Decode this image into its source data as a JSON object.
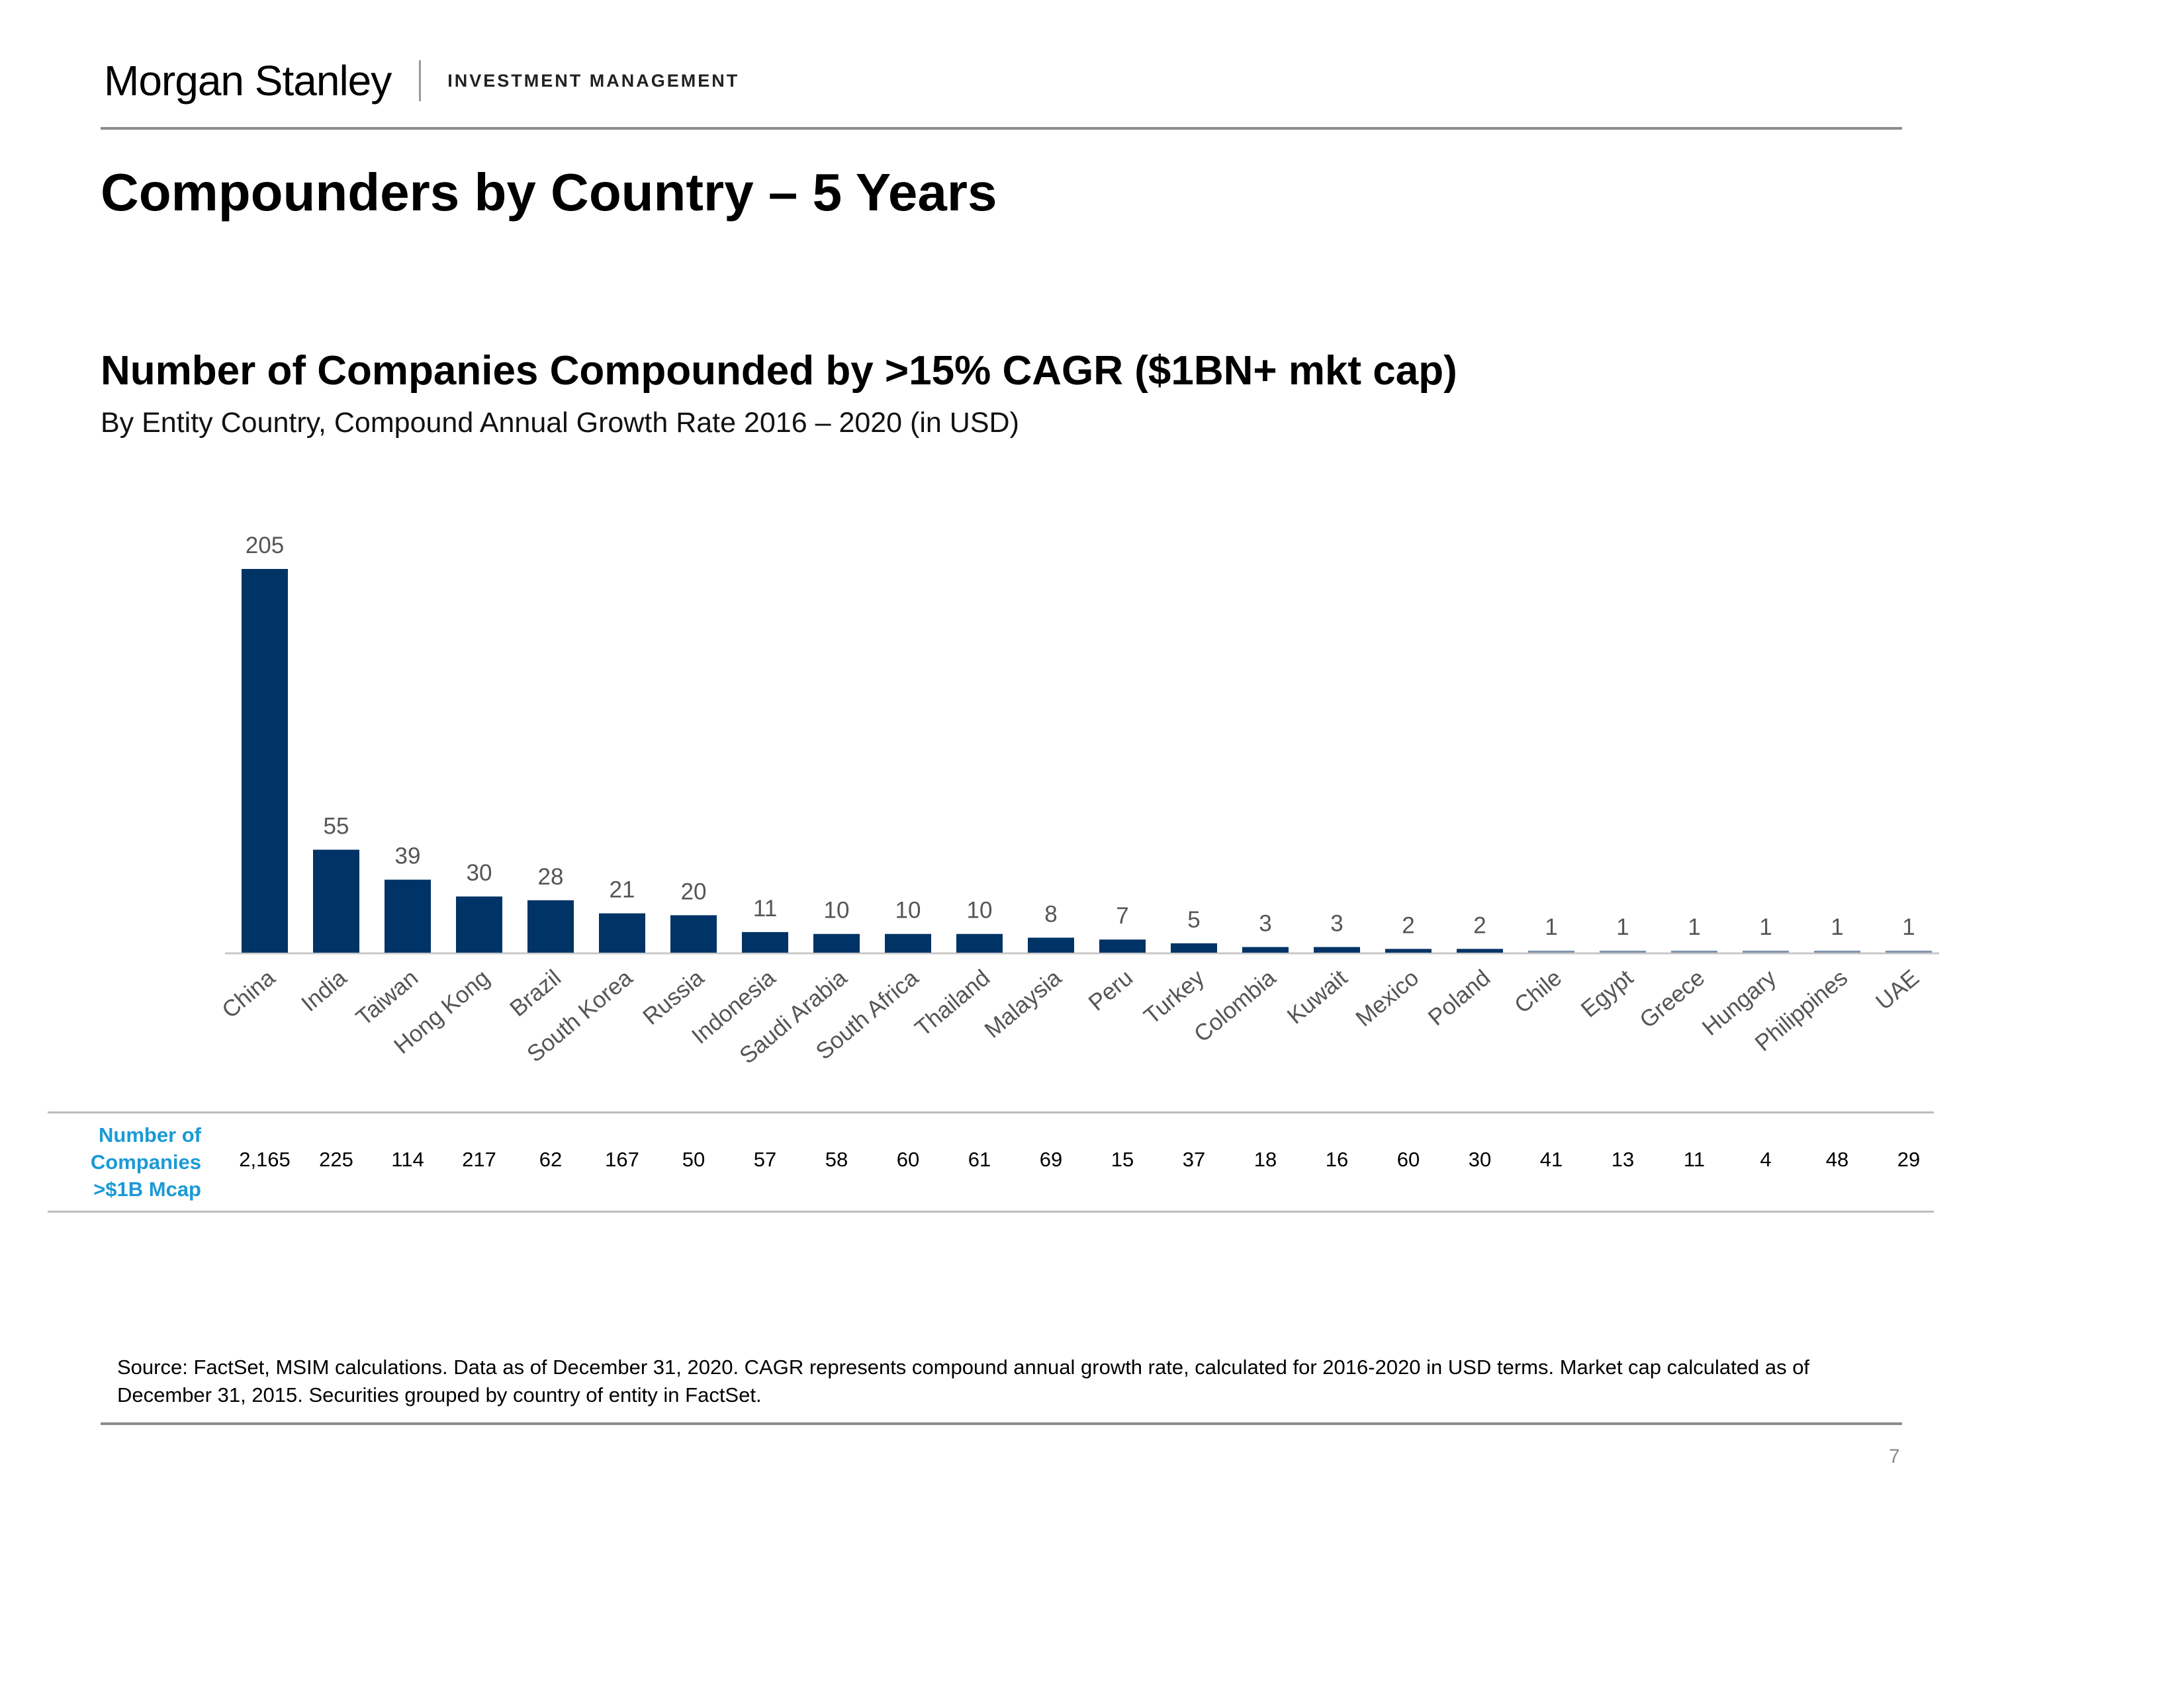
{
  "header": {
    "brand_name": "Morgan Stanley",
    "brand_division": "INVESTMENT MANAGEMENT"
  },
  "page_title": "Compounders by Country – 5 Years",
  "chart_data": {
    "type": "bar",
    "title": "Number of Companies Compounded by >15% CAGR ($1BN+ mkt cap)",
    "subtitle": "By Entity Country, Compound Annual Growth Rate 2016 – 2020 (in USD)",
    "categories": [
      "China",
      "India",
      "Taiwan",
      "Hong Kong",
      "Brazil",
      "South Korea",
      "Russia",
      "Indonesia",
      "Saudi Arabia",
      "South Africa",
      "Thailand",
      "Malaysia",
      "Peru",
      "Turkey",
      "Colombia",
      "Kuwait",
      "Mexico",
      "Poland",
      "Chile",
      "Egypt",
      "Greece",
      "Hungary",
      "Philippines",
      "UAE"
    ],
    "values": [
      205,
      55,
      39,
      30,
      28,
      21,
      20,
      11,
      10,
      10,
      10,
      8,
      7,
      5,
      3,
      3,
      2,
      2,
      1,
      1,
      1,
      1,
      1,
      1
    ],
    "ylim": [
      0,
      205
    ],
    "grid": false,
    "bar_color": "#003366",
    "low_bar_color": "#7f93ad"
  },
  "table": {
    "row_label_lines": [
      "Number of",
      "Companies",
      ">$1B Mcap"
    ],
    "label_color": "#1b9ad6",
    "values": [
      "2,165",
      "225",
      "114",
      "217",
      "62",
      "167",
      "50",
      "57",
      "58",
      "60",
      "61",
      "69",
      "15",
      "37",
      "18",
      "16",
      "60",
      "30",
      "41",
      "13",
      "11",
      "4",
      "48",
      "29"
    ]
  },
  "footnote": "Source: FactSet, MSIM calculations. Data as of December 31, 2020. CAGR represents compound annual growth rate, calculated for 2016-2020 in USD terms. Market cap calculated as of December 31, 2015. Securities grouped by country of entity in FactSet.",
  "page_number": "7"
}
